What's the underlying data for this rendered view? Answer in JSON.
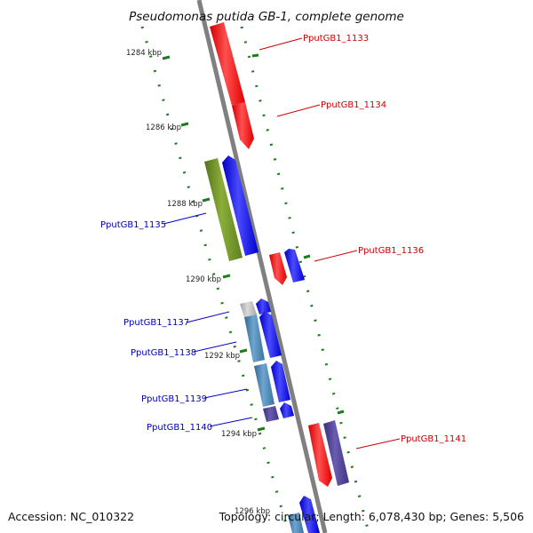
{
  "title": "Pseudomonas putida GB-1, complete genome",
  "footer": {
    "accession": "Accession: NC_010322",
    "topology": "Topology: circular; Length: 6,078,430 bp; Genes: 5,506"
  },
  "ticks": [
    "1284 kbp",
    "1286 kbp",
    "1288 kbp",
    "1290 kbp",
    "1292 kbp",
    "1294 kbp",
    "1296 kbp"
  ],
  "genes": {
    "g1133": "PputGB1_1133",
    "g1134": "PputGB1_1134",
    "g1135": "PputGB1_1135",
    "g1136": "PputGB1_1136",
    "g1137": "PputGB1_1137",
    "g1138": "PputGB1_1138",
    "g1139": "PputGB1_1139",
    "g1140": "PputGB1_1140",
    "g1141": "PputGB1_1141"
  },
  "colors": {
    "red": "#ff1010",
    "blue": "#1010ee",
    "olive": "#6b8e23",
    "steel": "#4682b4",
    "slate": "#4b3f8f",
    "silver": "#b8b8b8",
    "tick": "#1f7a1f",
    "axis": "#808080"
  }
}
